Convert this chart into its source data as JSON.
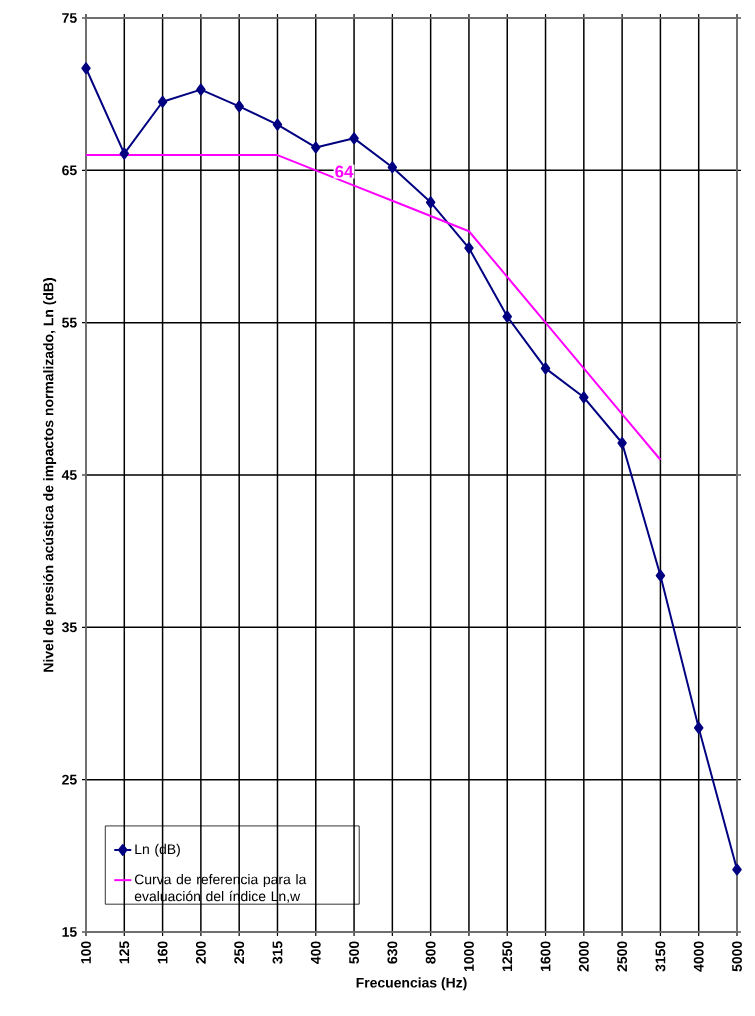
{
  "chart_data": {
    "type": "line",
    "xlabel": "Frecuencias (Hz)",
    "ylabel": "Nivel de presión acústica de impactos normalizado, Ln (dB)",
    "categories": [
      "100",
      "125",
      "160",
      "200",
      "250",
      "315",
      "400",
      "500",
      "630",
      "800",
      "1000",
      "1250",
      "1600",
      "2000",
      "2500",
      "3150",
      "4000",
      "5000"
    ],
    "series": [
      {
        "name": "Ln (dB)",
        "color": "#000080",
        "marker": "diamond",
        "values": [
          71.7,
          66.1,
          69.5,
          70.3,
          69.2,
          68.0,
          66.5,
          67.1,
          65.2,
          62.9,
          59.9,
          55.4,
          52.0,
          50.1,
          47.1,
          38.4,
          28.4,
          19.1
        ]
      },
      {
        "name": "Curva de referencia para la evaluación del índice Ln,w",
        "color": "#ff00ff",
        "marker": "none",
        "values": [
          66,
          66,
          66,
          66,
          66,
          66,
          65,
          64,
          63,
          62,
          61,
          58,
          55,
          52,
          49,
          46,
          null,
          null
        ]
      }
    ],
    "ylim": [
      15,
      75
    ],
    "yticks": [
      15,
      25,
      35,
      45,
      55,
      65,
      75
    ],
    "grid": true,
    "legend": "bottom left",
    "annotations": [
      {
        "text": "64",
        "x": "500",
        "y": 64
      }
    ]
  }
}
